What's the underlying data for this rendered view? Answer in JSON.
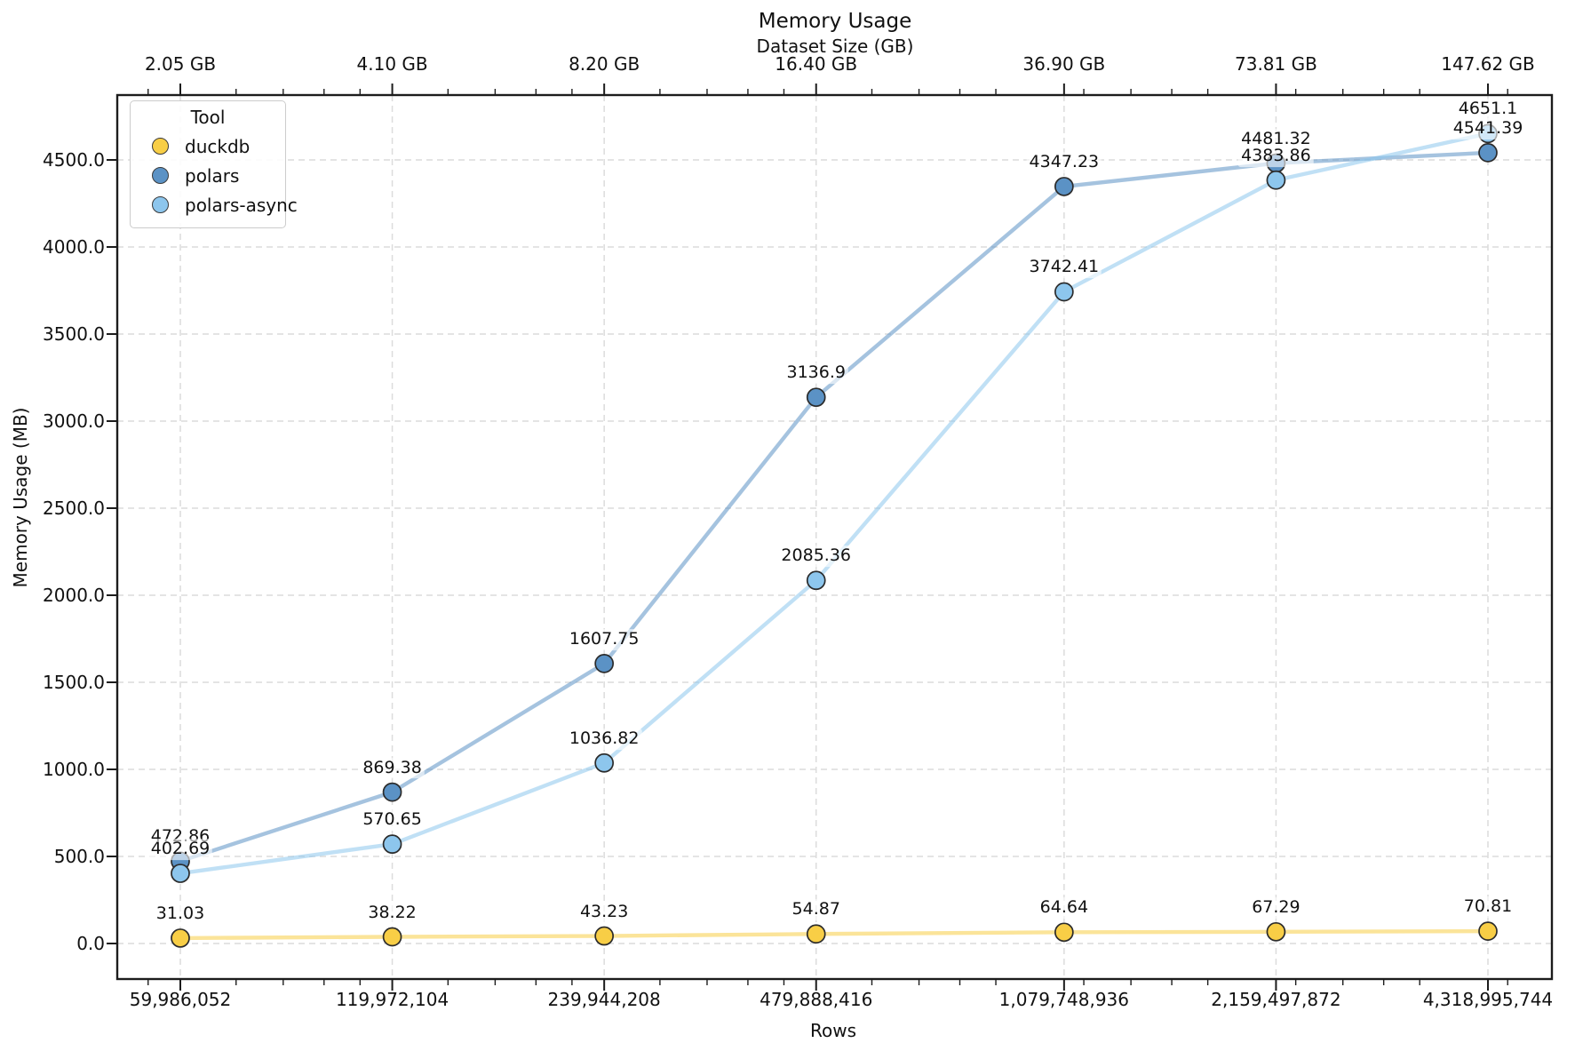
{
  "chart_data": {
    "type": "line",
    "title": "Memory Usage",
    "top_axis_label": "Dataset Size (GB)",
    "xlabel": "Rows",
    "ylabel": "Memory Usage (MB)",
    "legend_title": "Tool",
    "legend_position": "upper left",
    "grid": true,
    "x_scale": "log2",
    "x_values_rows": [
      59986052,
      119972104,
      239944208,
      479888416,
      1079748936,
      2159497872,
      4318995744
    ],
    "x_tick_labels": [
      "59,986,052",
      "119,972,104",
      "239,944,208",
      "479,888,416",
      "1,079,748,936",
      "2,159,497,872",
      "4,318,995,744"
    ],
    "top_tick_labels": [
      "2.05 GB",
      "4.10 GB",
      "8.20 GB",
      "16.40 GB",
      "36.90 GB",
      "73.81 GB",
      "147.62 GB"
    ],
    "y_tick_values": [
      0,
      500,
      1000,
      1500,
      2000,
      2500,
      3000,
      3500,
      4000,
      4500
    ],
    "y_tick_labels": [
      "0.0",
      "500.0",
      "1000.0",
      "1500.0",
      "2000.0",
      "2500.0",
      "3000.0",
      "3500.0",
      "4000.0",
      "4500.0"
    ],
    "ylim": [
      -205,
      4875
    ],
    "series": [
      {
        "name": "duckdb",
        "color": "#F8CE46",
        "values": [
          31.03,
          38.22,
          43.23,
          54.87,
          64.64,
          67.29,
          70.81
        ],
        "labels": [
          "31.03",
          "38.22",
          "43.23",
          "54.87",
          "64.64",
          "67.29",
          "70.81"
        ]
      },
      {
        "name": "polars",
        "color": "#5B92C5",
        "values": [
          472.86,
          869.38,
          1607.75,
          3136.9,
          4347.23,
          4481.32,
          4541.39
        ],
        "labels": [
          "472.86",
          "869.38",
          "1607.75",
          "3136.9",
          "4347.23",
          "4481.32",
          "4541.39"
        ]
      },
      {
        "name": "polars-async",
        "color": "#8DC6ED",
        "values": [
          402.69,
          570.65,
          1036.82,
          2085.36,
          3742.41,
          4383.86,
          4651.1
        ],
        "labels": [
          "402.69",
          "570.65",
          "1036.82",
          "2085.36",
          "3742.41",
          "4383.86",
          "4651.1"
        ]
      }
    ]
  }
}
